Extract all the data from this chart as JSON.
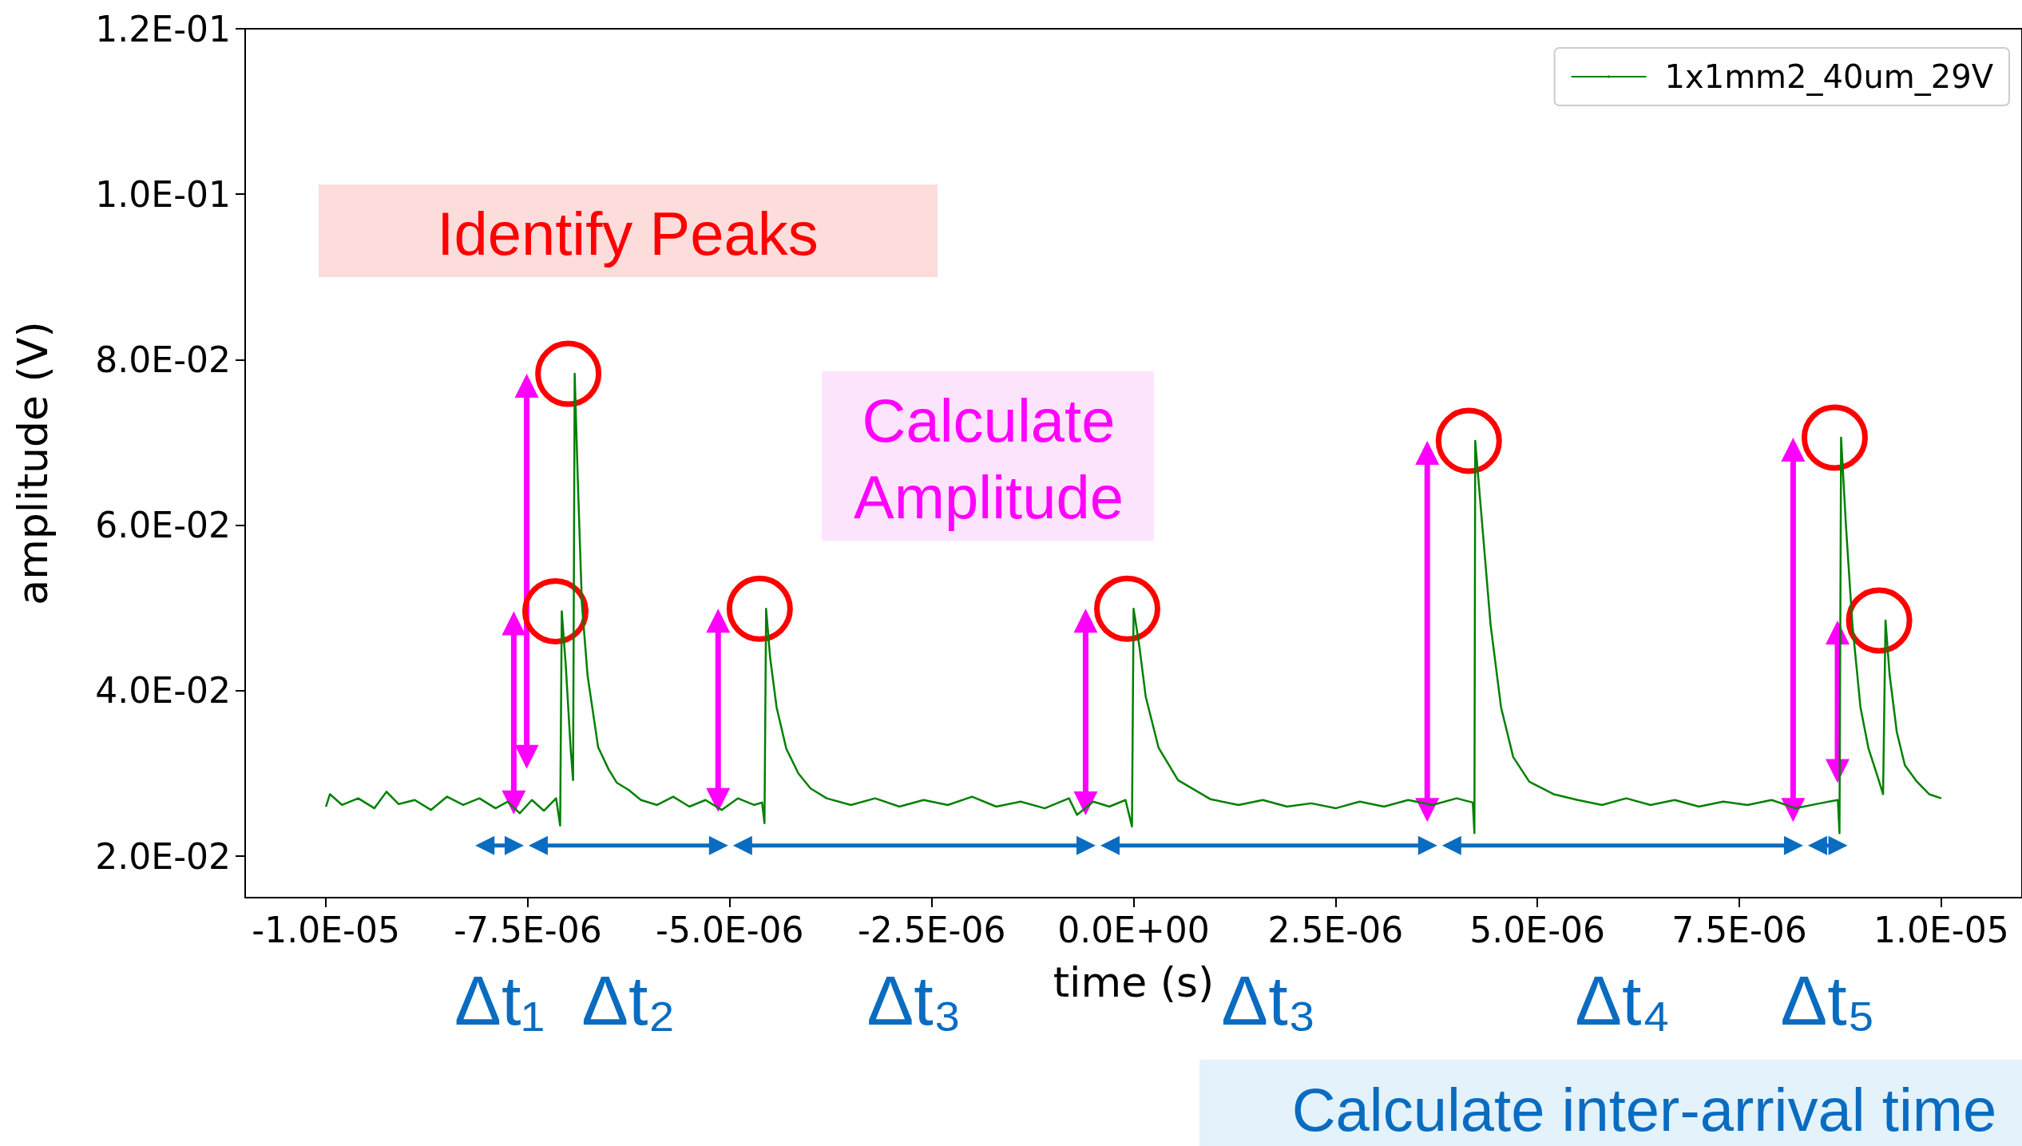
{
  "chart_data": {
    "type": "line",
    "xlabel": "time (s)",
    "ylabel": "amplitude (V)",
    "xlim": [
      -1.1e-05,
      1.1e-05
    ],
    "ylim": [
      0.015,
      0.12
    ],
    "xticks": [
      {
        "value": -1e-05,
        "label": "-1.0E-05"
      },
      {
        "value": -7.5e-06,
        "label": "-7.5E-06"
      },
      {
        "value": -5e-06,
        "label": "-5.0E-06"
      },
      {
        "value": -2.5e-06,
        "label": "-2.5E-06"
      },
      {
        "value": 0,
        "label": "0.0E+00"
      },
      {
        "value": 2.5e-06,
        "label": "2.5E-06"
      },
      {
        "value": 5e-06,
        "label": "5.0E-06"
      },
      {
        "value": 7.5e-06,
        "label": "7.5E-06"
      },
      {
        "value": 1e-05,
        "label": "1.0E-05"
      }
    ],
    "yticks": [
      {
        "value": 0.02,
        "label": "2.0E-02"
      },
      {
        "value": 0.04,
        "label": "4.0E-02"
      },
      {
        "value": 0.06,
        "label": "6.0E-02"
      },
      {
        "value": 0.08,
        "label": "8.0E-02"
      },
      {
        "value": 0.1,
        "label": "1.0E-01"
      },
      {
        "value": 0.12,
        "label": "1.2E-01"
      }
    ],
    "legend": "top right",
    "marker": "none",
    "line_style": "solid",
    "series": [
      {
        "name": "1x1mm2_40um_29V",
        "color": "#008000",
        "x": [
          -1e-05,
          -9.95e-06,
          -9.8e-06,
          -9.6e-06,
          -9.4e-06,
          -9.25e-06,
          -9.1e-06,
          -8.9e-06,
          -8.7e-06,
          -8.5e-06,
          -8.3e-06,
          -8.1e-06,
          -7.9e-06,
          -7.75e-06,
          -7.6e-06,
          -7.45e-06,
          -7.3e-06,
          -7.15e-06,
          -7.1e-06,
          -7.08e-06,
          -7.03e-06,
          -6.97e-06,
          -6.94e-06,
          -6.92e-06,
          -6.88e-06,
          -6.83e-06,
          -6.76e-06,
          -6.63e-06,
          -6.5e-06,
          -6.4e-06,
          -6.25e-06,
          -6.1e-06,
          -5.9e-06,
          -5.7e-06,
          -5.5e-06,
          -5.3e-06,
          -5.1e-06,
          -4.9e-06,
          -4.7e-06,
          -4.6e-06,
          -4.57e-06,
          -4.55e-06,
          -4.5e-06,
          -4.42e-06,
          -4.3e-06,
          -4.15e-06,
          -4e-06,
          -3.8e-06,
          -3.5e-06,
          -3.2e-06,
          -2.9e-06,
          -2.6e-06,
          -2.3e-06,
          -2e-06,
          -1.7e-06,
          -1.4e-06,
          -1.1e-06,
          -8e-07,
          -7e-07,
          -5e-07,
          -3e-07,
          -1e-07,
          -2e-08,
          0,
          7e-08,
          1.5e-07,
          3.1e-07,
          5.5e-07,
          9.5e-07,
          1.3e-06,
          1.6e-06,
          1.9e-06,
          2.2e-06,
          2.5e-06,
          2.8e-06,
          3.1e-06,
          3.4e-06,
          3.7e-06,
          4e-06,
          4.2e-06,
          4.22e-06,
          4.23e-06,
          4.3e-06,
          4.42e-06,
          4.55e-06,
          4.7e-06,
          4.9e-06,
          5.2e-06,
          5.5e-06,
          5.8e-06,
          6.1e-06,
          6.4e-06,
          6.7e-06,
          7e-06,
          7.3e-06,
          7.6e-06,
          7.9e-06,
          8.2e-06,
          8.5e-06,
          8.72e-06,
          8.74e-06,
          8.76e-06,
          8.82e-06,
          8.9e-06,
          9e-06,
          9.1e-06,
          9.2e-06,
          9.28e-06,
          9.31e-06,
          9.36e-06,
          9.45e-06,
          9.55e-06,
          9.7e-06,
          9.85e-06,
          1e-05
        ],
        "values": [
          0.026,
          0.0275,
          0.0262,
          0.027,
          0.0258,
          0.0278,
          0.0263,
          0.0268,
          0.0256,
          0.0272,
          0.0262,
          0.027,
          0.0258,
          0.0266,
          0.0252,
          0.0268,
          0.0255,
          0.027,
          0.0237,
          0.0496,
          0.043,
          0.033,
          0.0292,
          0.0783,
          0.065,
          0.0504,
          0.0418,
          0.0332,
          0.0305,
          0.0289,
          0.028,
          0.0268,
          0.0262,
          0.0272,
          0.026,
          0.0268,
          0.0256,
          0.027,
          0.0262,
          0.0265,
          0.024,
          0.0499,
          0.044,
          0.038,
          0.033,
          0.03,
          0.0282,
          0.027,
          0.0262,
          0.027,
          0.026,
          0.0268,
          0.0262,
          0.0272,
          0.026,
          0.0266,
          0.0258,
          0.027,
          0.025,
          0.0266,
          0.026,
          0.0268,
          0.0236,
          0.0499,
          0.0455,
          0.0393,
          0.0331,
          0.0292,
          0.0269,
          0.0262,
          0.0268,
          0.026,
          0.0264,
          0.0258,
          0.0266,
          0.026,
          0.0268,
          0.0262,
          0.027,
          0.0265,
          0.0228,
          0.0702,
          0.062,
          0.048,
          0.038,
          0.032,
          0.029,
          0.0275,
          0.0268,
          0.0262,
          0.027,
          0.0262,
          0.0268,
          0.026,
          0.0266,
          0.0262,
          0.0268,
          0.0258,
          0.0264,
          0.0268,
          0.0228,
          0.0706,
          0.06,
          0.048,
          0.038,
          0.033,
          0.03,
          0.0275,
          0.0485,
          0.042,
          0.035,
          0.031,
          0.029,
          0.0275,
          0.027
        ]
      }
    ],
    "annotations": [
      "Identify Peaks",
      "Calculate Amplitude",
      "Δt₁",
      "Δt₂",
      "Δt₃",
      "Δt₃",
      "Δt₄",
      "Δt₅",
      "Calculate inter-arrival time"
    ]
  }
}
